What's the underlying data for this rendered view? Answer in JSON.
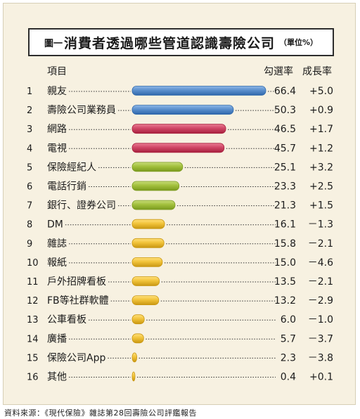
{
  "title_prefix": "圖一",
  "title": "消費者透過哪些管道認識壽險公司",
  "title_unit": "（單位%）",
  "headers": {
    "item": "項目",
    "rate": "勾選率",
    "growth": "成長率"
  },
  "footer": "資料來源：《現代保險》雜誌第28回壽險公司評鑑報告",
  "colors": {
    "blue": "#5b8fcd",
    "red": "#d04766",
    "green": "#a2c03c",
    "yellow": "#f1c33a"
  },
  "chart_data": {
    "type": "bar",
    "orientation": "horizontal",
    "categories": [
      "親友",
      "壽險公司業務員",
      "網路",
      "電視",
      "保險經紀人",
      "電話行銷",
      "銀行、證券公司",
      "DM",
      "雜誌",
      "報紙",
      "戶外招牌看板",
      "FB等社群軟體",
      "公車看板",
      "廣播",
      "保險公司App",
      "其他"
    ],
    "ranks": [
      "1",
      "2",
      "3",
      "4",
      "5",
      "6",
      "7",
      "8",
      "9",
      "10",
      "11",
      "12",
      "13",
      "14",
      "15",
      "16"
    ],
    "values": [
      66.4,
      50.3,
      46.5,
      45.7,
      25.1,
      23.3,
      21.3,
      16.1,
      15.8,
      15.0,
      13.5,
      13.2,
      6.0,
      5.7,
      2.3,
      0.4
    ],
    "value_labels": [
      "66.4",
      "50.3",
      "46.5",
      "45.7",
      "25.1",
      "23.3",
      "21.3",
      "16.1",
      "15.8",
      "15.0",
      "13.5",
      "13.2",
      "6.0",
      "5.7",
      "2.3",
      "0.4"
    ],
    "growth_labels": [
      "+5.0",
      "+0.9",
      "+1.7",
      "+1.2",
      "+3.2",
      "+2.5",
      "+1.5",
      "－1.3",
      "－2.1",
      "－4.6",
      "－2.1",
      "－2.9",
      "－1.0",
      "－3.7",
      "－3.8",
      "+0.1"
    ],
    "bar_colors": [
      "blue",
      "blue",
      "red",
      "red",
      "green",
      "green",
      "green",
      "yellow",
      "yellow",
      "yellow",
      "yellow",
      "yellow",
      "yellow",
      "yellow",
      "yellow",
      "yellow"
    ],
    "xlim": [
      0,
      70
    ]
  }
}
